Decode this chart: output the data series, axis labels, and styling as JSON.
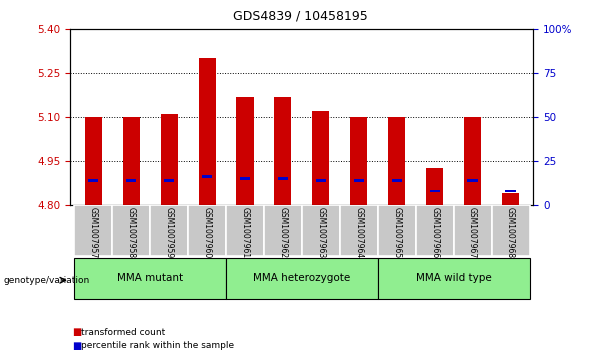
{
  "title": "GDS4839 / 10458195",
  "samples": [
    "GSM1007957",
    "GSM1007958",
    "GSM1007959",
    "GSM1007960",
    "GSM1007961",
    "GSM1007962",
    "GSM1007963",
    "GSM1007964",
    "GSM1007965",
    "GSM1007966",
    "GSM1007967",
    "GSM1007968"
  ],
  "transformed_count": [
    5.1,
    5.1,
    5.11,
    5.3,
    5.17,
    5.17,
    5.12,
    5.1,
    5.1,
    4.925,
    5.1,
    4.84
  ],
  "percentile_rank": [
    14,
    14,
    14,
    16,
    15,
    15,
    14,
    14,
    14,
    8,
    14,
    8
  ],
  "baseline": 4.8,
  "ymin": 4.8,
  "ymax": 5.4,
  "yright_min": 0,
  "yright_max": 100,
  "yticks_left": [
    4.8,
    4.95,
    5.1,
    5.25,
    5.4
  ],
  "yticks_right": [
    0,
    25,
    50,
    75,
    100
  ],
  "groups": [
    {
      "label": "MMA mutant",
      "start": 0,
      "end": 3
    },
    {
      "label": "MMA heterozygote",
      "start": 4,
      "end": 7
    },
    {
      "label": "MMA wild type",
      "start": 8,
      "end": 11
    }
  ],
  "group_color": "#90EE90",
  "bar_color": "#CC0000",
  "blue_marker_color": "#0000CC",
  "bar_width": 0.45,
  "left_axis_color": "#CC0000",
  "right_axis_color": "#0000CC",
  "legend_items": [
    "transformed count",
    "percentile rank within the sample"
  ],
  "legend_colors": [
    "#CC0000",
    "#0000CC"
  ],
  "genotype_label": "genotype/variation",
  "sample_bg_color": "#C8C8C8",
  "plot_bg_color": "#FFFFFF"
}
